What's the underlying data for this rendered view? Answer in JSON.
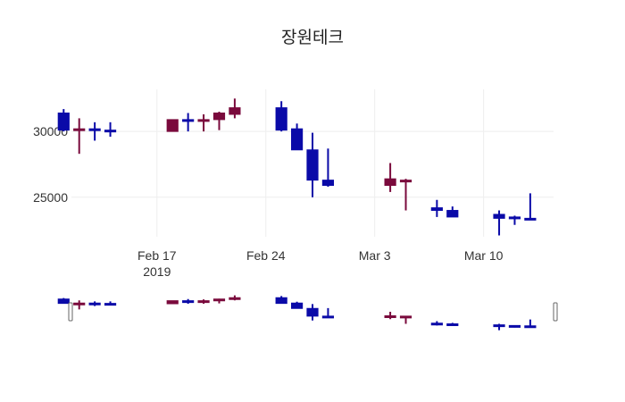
{
  "chart_data": {
    "type": "candlestick",
    "title": "장원테크",
    "xlabel": "",
    "ylabel": "",
    "grid": true,
    "colors": {
      "increasing": "#7a0a3c",
      "decreasing": "#0a0aa8"
    },
    "ylim": [
      22000,
      33200
    ],
    "xlim": [
      "2019-02-11T12:00",
      "2019-03-14T12:00"
    ],
    "y_ticks": [
      25000,
      30000
    ],
    "y_tick_labels": [
      "25000",
      "30000"
    ],
    "x_ticks": [
      {
        "date": "2019-02-17",
        "label": "Feb 17",
        "sublabel": "2019"
      },
      {
        "date": "2019-02-24",
        "label": "Feb 24",
        "sublabel": ""
      },
      {
        "date": "2019-03-03",
        "label": "Mar 3",
        "sublabel": ""
      },
      {
        "date": "2019-03-10",
        "label": "Mar 10",
        "sublabel": ""
      }
    ],
    "candles": [
      {
        "date": "2019-02-11",
        "open": 31400,
        "high": 31700,
        "low": 30000,
        "close": 30100
      },
      {
        "date": "2019-02-12",
        "open": 30100,
        "high": 31000,
        "low": 28300,
        "close": 30200
      },
      {
        "date": "2019-02-13",
        "open": 30200,
        "high": 30700,
        "low": 29300,
        "close": 30100
      },
      {
        "date": "2019-02-14",
        "open": 30100,
        "high": 30700,
        "low": 29600,
        "close": 30000
      },
      {
        "date": "2019-02-18",
        "open": 30000,
        "high": 30900,
        "low": 30000,
        "close": 30900
      },
      {
        "date": "2019-02-19",
        "open": 30900,
        "high": 31400,
        "low": 30000,
        "close": 30800
      },
      {
        "date": "2019-02-20",
        "open": 30800,
        "high": 31300,
        "low": 30000,
        "close": 30900
      },
      {
        "date": "2019-02-21",
        "open": 30900,
        "high": 31500,
        "low": 30100,
        "close": 31400
      },
      {
        "date": "2019-02-22",
        "open": 31300,
        "high": 32500,
        "low": 31000,
        "close": 31800
      },
      {
        "date": "2019-02-25",
        "open": 31800,
        "high": 32300,
        "low": 30000,
        "close": 30100
      },
      {
        "date": "2019-02-26",
        "open": 30200,
        "high": 30600,
        "low": 28600,
        "close": 28600
      },
      {
        "date": "2019-02-27",
        "open": 28600,
        "high": 29900,
        "low": 25000,
        "close": 26300
      },
      {
        "date": "2019-02-28",
        "open": 26300,
        "high": 28700,
        "low": 25800,
        "close": 25900
      },
      {
        "date": "2019-03-04",
        "open": 25900,
        "high": 27600,
        "low": 25400,
        "close": 26400
      },
      {
        "date": "2019-03-05",
        "open": 26300,
        "high": 26400,
        "low": 24000,
        "close": 26300
      },
      {
        "date": "2019-03-07",
        "open": 24200,
        "high": 24800,
        "low": 23500,
        "close": 24000
      },
      {
        "date": "2019-03-08",
        "open": 24000,
        "high": 24300,
        "low": 23500,
        "close": 23500
      },
      {
        "date": "2019-03-11",
        "open": 23700,
        "high": 24000,
        "low": 22100,
        "close": 23400
      },
      {
        "date": "2019-03-12",
        "open": 23500,
        "high": 23600,
        "low": 22900,
        "close": 23400
      },
      {
        "date": "2019-03-13",
        "open": 23400,
        "high": 25300,
        "low": 23300,
        "close": 23300
      }
    ],
    "rangeslider": true
  }
}
